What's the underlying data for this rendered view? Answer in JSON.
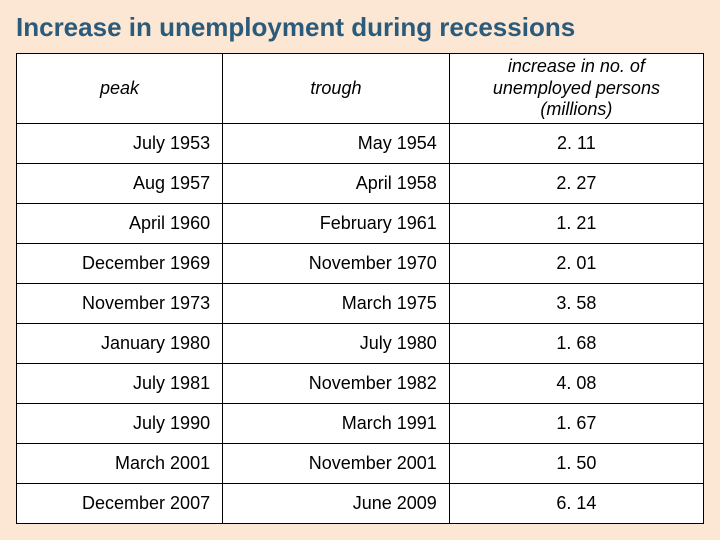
{
  "title": "Increase in unemployment during recessions",
  "table": {
    "type": "table",
    "background_color": "#ffffff",
    "page_background": "#fce6d4",
    "border_color": "#000000",
    "title_color": "#2b5b7a",
    "title_fontsize": 26,
    "cell_fontsize": 18,
    "columns": [
      {
        "label": "peak",
        "align": "right",
        "header_align": "center",
        "italic_header": true
      },
      {
        "label": "trough",
        "align": "right",
        "header_align": "center",
        "italic_header": true
      },
      {
        "label": "increase in no. of unemployed persons (millions)",
        "align": "center",
        "header_align": "center",
        "italic_header": true
      }
    ],
    "rows": [
      {
        "peak": "July 1953",
        "trough": "May 1954",
        "inc": "2. 11"
      },
      {
        "peak": "Aug 1957",
        "trough": "April 1958",
        "inc": "2. 27"
      },
      {
        "peak": "April 1960",
        "trough": "February 1961",
        "inc": "1. 21"
      },
      {
        "peak": "December 1969",
        "trough": "November 1970",
        "inc": "2. 01"
      },
      {
        "peak": "November 1973",
        "trough": "March 1975",
        "inc": "3. 58"
      },
      {
        "peak": "January 1980",
        "trough": "July 1980",
        "inc": "1. 68"
      },
      {
        "peak": "July 1981",
        "trough": "November 1982",
        "inc": "4. 08"
      },
      {
        "peak": "July 1990",
        "trough": "March 1991",
        "inc": "1. 67"
      },
      {
        "peak": "March 2001",
        "trough": "November 2001",
        "inc": "1. 50"
      },
      {
        "peak": "December 2007",
        "trough": "June 2009",
        "inc": "6. 14"
      }
    ]
  }
}
